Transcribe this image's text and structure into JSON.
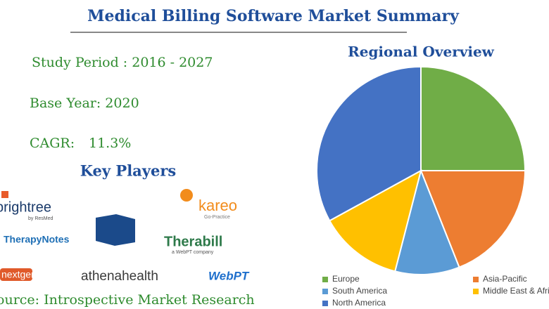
{
  "header": {
    "title": "Medical Billing Software Market Summary"
  },
  "summary": {
    "study_period": "Study Period : 2016 - 2027",
    "base_year": "Base Year: 2020",
    "cagr_label": "CAGR:",
    "cagr_value": "11.3%"
  },
  "key_players": {
    "title": "Key Players",
    "logos": [
      "brightree",
      "by ResMed",
      "TherapyNotes",
      "kareo",
      "Go-Practice",
      "Therabill",
      "a WebPT company",
      "nextgen",
      "athenahealth",
      "WebPT"
    ]
  },
  "source": "Source: Introspective Market Research",
  "chart_data": {
    "type": "pie",
    "title": "Regional Overview",
    "categories": [
      "Europe",
      "Asia-Pacific",
      "South America",
      "Middle East & Africa",
      "North America"
    ],
    "values": [
      25,
      19,
      10,
      13,
      33
    ],
    "colors": [
      "#70ad47",
      "#ed7d31",
      "#5b9bd5",
      "#ffc000",
      "#4472c4"
    ],
    "legend": "bottom"
  }
}
